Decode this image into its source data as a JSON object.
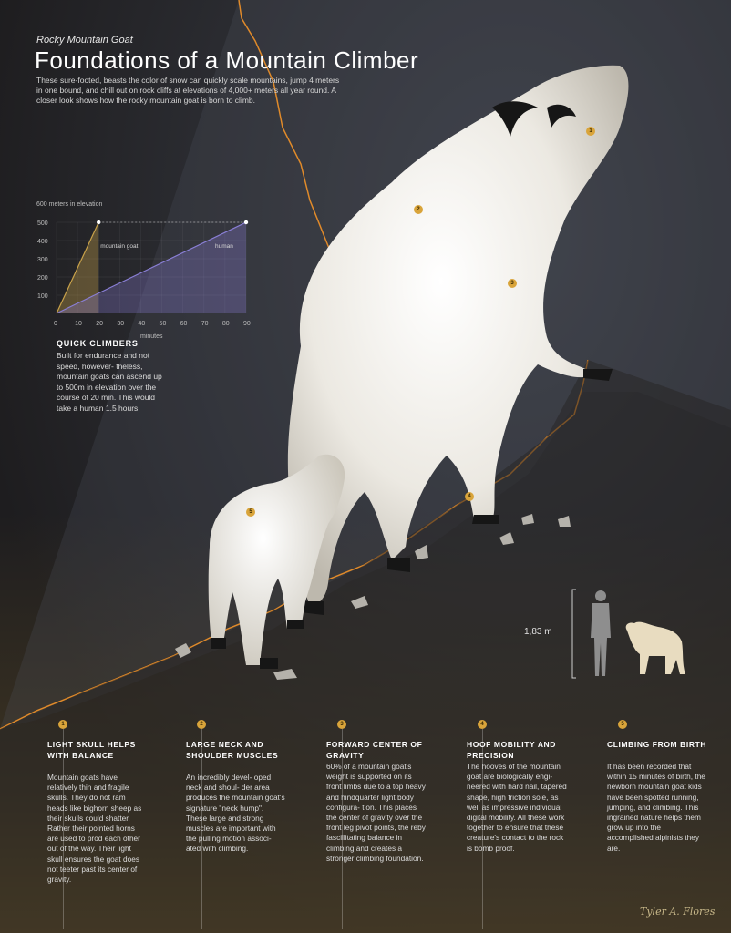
{
  "header": {
    "subtitle": "Rocky Mountain Goat",
    "title": "Foundations of a Mountain Climber",
    "intro": "These sure-footed, beasts the color of snow can quickly scale mountains, jump 4 meters in one bound, and chill out on rock cliffs at elevations of 4,000+ meters all year round. A closer look shows how the rocky mountain goat is born to climb."
  },
  "chart_data": {
    "type": "line",
    "title": "",
    "ylabel": "600 meters in elevation",
    "xlabel": "minutes",
    "xlim": [
      0,
      90
    ],
    "ylim": [
      0,
      600
    ],
    "x_ticks": [
      "0",
      "10",
      "20",
      "30",
      "40",
      "50",
      "60",
      "70",
      "80",
      "90"
    ],
    "y_ticks": [
      "100",
      "200",
      "300",
      "400",
      "500"
    ],
    "series": [
      {
        "name": "mountain goat",
        "x": [
          0,
          20
        ],
        "y": [
          0,
          500
        ],
        "color": "#c9a24a"
      },
      {
        "name": "human",
        "x": [
          0,
          90
        ],
        "y": [
          0,
          500
        ],
        "color": "#8a7fd6"
      }
    ]
  },
  "quick_climbers": {
    "heading": "QUICK CLIMBERS",
    "body": "Built for endurance and not speed, however- theless, mountain goats can ascend up to 500m in elevation over the course of 20 min. This would take a human 1.5 hours."
  },
  "scale": {
    "label": "1,83 m"
  },
  "markers": [
    "1",
    "2",
    "3",
    "4",
    "5"
  ],
  "callouts": [
    {
      "num": "1",
      "heading": "LIGHT SKULL HELPS WITH BALANCE",
      "body": "Mountain goats have relatively thin and fragile skulls. They do not ram heads like bighorn sheep as their skulls could shatter. Rather their pointed horns are used to prod each other out of the way. Their light skull ensures the goat does not teeter past its center of gravity."
    },
    {
      "num": "2",
      "heading": "LARGE NECK AND SHOULDER MUSCLES",
      "body": "An incredibly devel- oped neck and shoul- der area produces the mountain goat's signature \"neck hump\". These large and strong muscles are important with the pulling motion associ- ated with climbing."
    },
    {
      "num": "3",
      "heading": "FORWARD CENTER OF GRAVITY",
      "body": "60% of a mountain goat's weight is supported on its front limbs due to a top heavy and hindquarter light body configura- tion. This places the center of gravity over the front leg pivot points, the reby fascillitating balance in climbing and creates a stronger climbing foundation."
    },
    {
      "num": "4",
      "heading": "HOOF MOBILITY AND PRECISION",
      "body": "The hooves of the mountain goat are biologically engi- neered with hard nail, tapered shape, high friction sole, as well as impressive individual digital mobility. All these work together to ensure that these creature's contact to the rock is bomb proof."
    },
    {
      "num": "5",
      "heading": "CLIMBING FROM BIRTH",
      "body": "It has been recorded that within 15 minutes of birth, the newborn mountain goat kids have been spotted running, jumping, and climbing. This ingrained nature helps them grow up into the accomplished alpinists they are."
    }
  ],
  "signature": "Tyler A. Flores",
  "colors": {
    "accent": "#d9a43a",
    "ridge": "#e08a2a",
    "goat": "#ece9e2",
    "silhouette_goat": "#e8dcc0",
    "silhouette_human": "#8e8e8e"
  }
}
